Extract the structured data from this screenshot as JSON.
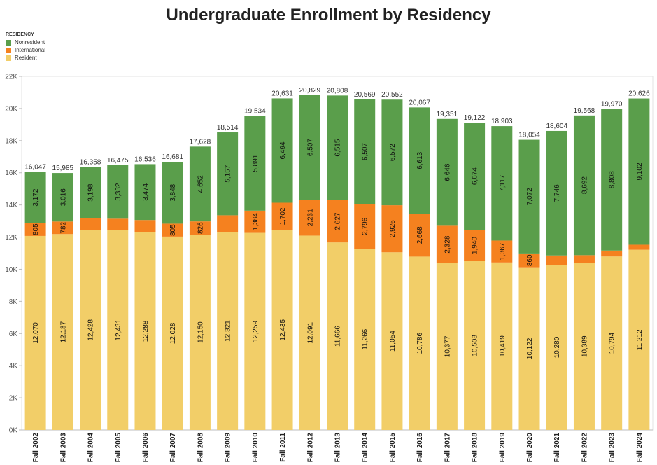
{
  "chart_data": {
    "type": "bar",
    "stacked": true,
    "title": "Undergraduate Enrollment by Residency",
    "legend_title": "RESIDENCY",
    "legend_position": "top-left",
    "legend": [
      "Nonresident",
      "International",
      "Resident"
    ],
    "categories": [
      "Fall 2002",
      "Fall 2003",
      "Fall 2004",
      "Fall 2005",
      "Fall 2006",
      "Fall 2007",
      "Fall 2008",
      "Fall 2009",
      "Fall 2010",
      "Fall 2011",
      "Fall 2012",
      "Fall 2013",
      "Fall 2014",
      "Fall 2015",
      "Fall 2016",
      "Fall 2017",
      "Fall 2018",
      "Fall 2019",
      "Fall 2020",
      "Fall 2021",
      "Fall 2022",
      "Fall 2023",
      "Fall 2024"
    ],
    "series": [
      {
        "name": "Resident",
        "color": "#F2CE68",
        "values": [
          12070,
          12187,
          12428,
          12431,
          12288,
          12028,
          12150,
          12321,
          12259,
          12435,
          12091,
          11666,
          11266,
          11054,
          10786,
          10377,
          10508,
          10419,
          10122,
          10280,
          10389,
          10794,
          11212
        ],
        "labels": [
          "12,070",
          "12,187",
          "12,428",
          "12,431",
          "12,288",
          "12,028",
          "12,150",
          "12,321",
          "12,259",
          "12,435",
          "12,091",
          "11,666",
          "11,266",
          "11,054",
          "10,786",
          "10,377",
          "10,508",
          "10,419",
          "10,122",
          "10,280",
          "10,389",
          "10,794",
          "11,212"
        ]
      },
      {
        "name": "International",
        "color": "#F5811F",
        "values": [
          805,
          782,
          732,
          712,
          774,
          805,
          826,
          1036,
          1384,
          1702,
          2231,
          2627,
          2796,
          2926,
          2668,
          2328,
          1940,
          1367,
          860,
          578,
          487,
          368,
          312
        ],
        "labels": [
          "805",
          "782",
          "",
          "",
          "",
          "805",
          "826",
          "",
          "1,384",
          "1,702",
          "2,231",
          "2,627",
          "2,796",
          "2,926",
          "2,668",
          "2,328",
          "1,940",
          "1,367",
          "860",
          "",
          "",
          "",
          ""
        ]
      },
      {
        "name": "Nonresident",
        "color": "#5A9E4B",
        "values": [
          3172,
          3016,
          3198,
          3332,
          3474,
          3848,
          4652,
          5157,
          5891,
          6494,
          6507,
          6515,
          6507,
          6572,
          6613,
          6646,
          6674,
          7117,
          7072,
          7746,
          8692,
          8808,
          9102
        ],
        "labels": [
          "3,172",
          "3,016",
          "3,198",
          "3,332",
          "3,474",
          "3,848",
          "4,652",
          "5,157",
          "5,891",
          "6,494",
          "6,507",
          "6,515",
          "6,507",
          "6,572",
          "6,613",
          "6,646",
          "6,674",
          "7,117",
          "7,072",
          "7,746",
          "8,692",
          "8,808",
          "9,102"
        ]
      }
    ],
    "totals": [
      "16,047",
      "15,985",
      "16,358",
      "16,475",
      "16,536",
      "16,681",
      "17,628",
      "18,514",
      "19,534",
      "20,631",
      "20,829",
      "20,808",
      "20,569",
      "20,552",
      "20,067",
      "19,351",
      "19,122",
      "18,903",
      "18,054",
      "18,604",
      "19,568",
      "19,970",
      "20,626"
    ],
    "ylim": [
      0,
      22000
    ],
    "yticks": [
      0,
      2000,
      4000,
      6000,
      8000,
      10000,
      12000,
      14000,
      16000,
      18000,
      20000,
      22000
    ],
    "ytick_labels": [
      "0K",
      "2K",
      "4K",
      "6K",
      "8K",
      "10K",
      "12K",
      "14K",
      "16K",
      "18K",
      "20K",
      "22K"
    ],
    "grid": false,
    "colors": {
      "resident": "#F2CE68",
      "international": "#F5811F",
      "nonresident": "#5A9E4B"
    }
  }
}
